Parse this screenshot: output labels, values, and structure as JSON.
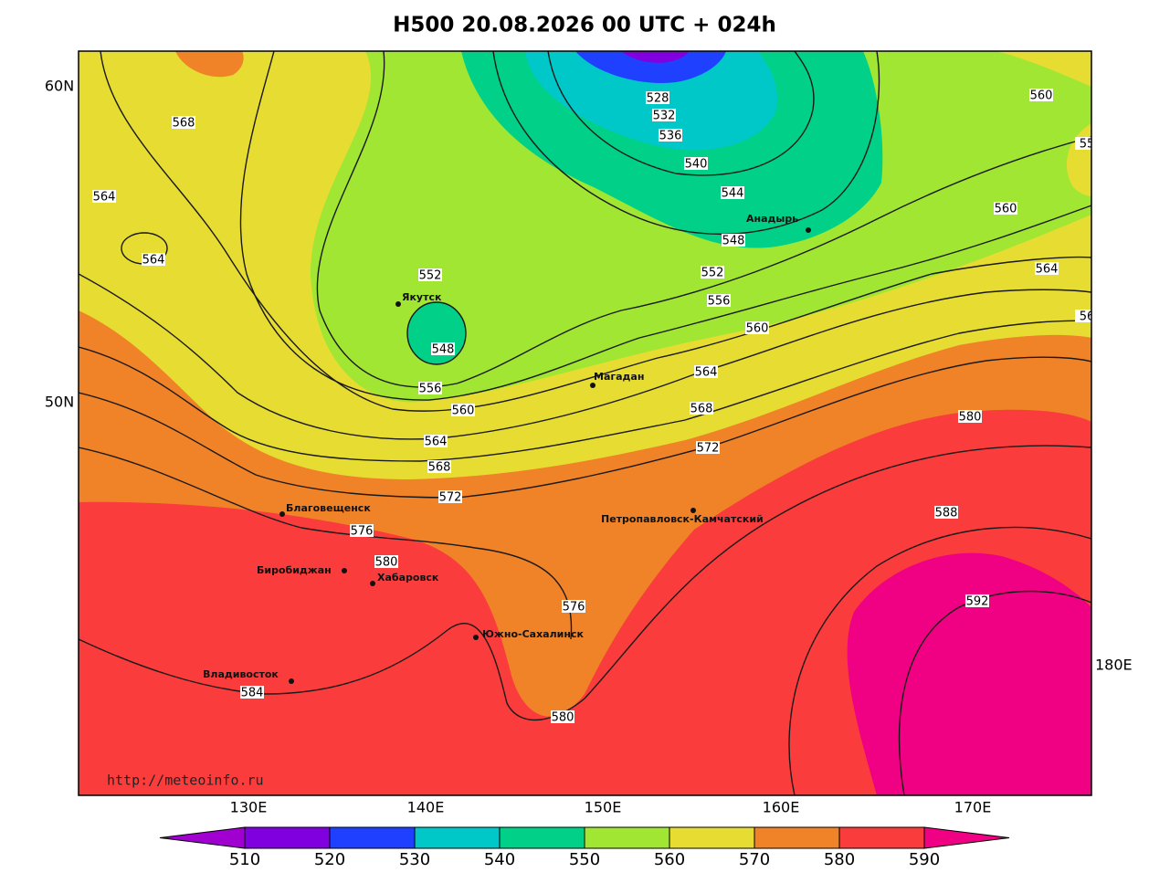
{
  "title": "H500  20.08.2026 00 UTC + 024h",
  "lat_labels": [
    "60N",
    "50N"
  ],
  "lon_labels": [
    "130E",
    "140E",
    "150E",
    "160E",
    "170E",
    "180E"
  ],
  "source": "http://meteoinfo.ru",
  "cities": [
    "Якутск",
    "Магадан",
    "Анадырь",
    "Благовещенск",
    "Биробиджан",
    "Хабаровск",
    "Южно-Сахалинск",
    "Владивосток",
    "Петропавловск-Камчатский"
  ],
  "contour_labels": [
    528,
    532,
    536,
    540,
    544,
    548,
    552,
    556,
    560,
    564,
    568,
    572,
    576,
    580,
    568,
    564,
    564,
    552,
    548,
    556,
    560,
    564,
    568,
    572,
    576,
    580,
    584,
    580,
    588,
    592,
    560,
    560,
    564,
    55,
    56
  ],
  "colorbar": {
    "ticks": [
      510,
      520,
      530,
      540,
      550,
      560,
      570,
      580,
      590
    ],
    "colors": [
      "#a000d0",
      "#8000e0",
      "#2040ff",
      "#00c8c8",
      "#00d088",
      "#a0e632",
      "#e6dc32",
      "#f08228",
      "#fa3c3c",
      "#f00082"
    ]
  }
}
